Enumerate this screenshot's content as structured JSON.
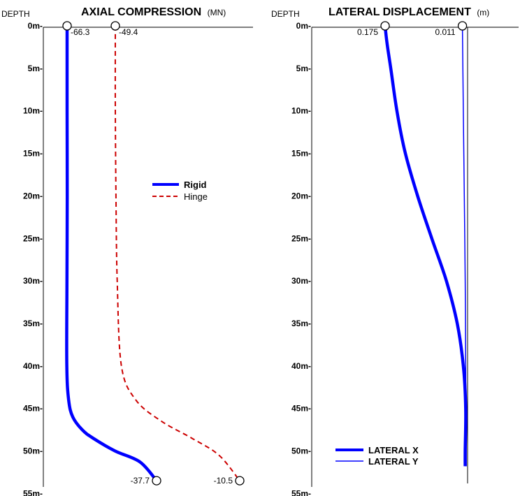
{
  "chart_data": [
    {
      "type": "line",
      "title": "AXIAL COMPRESSION",
      "title_unit": "(MN)",
      "ylabel": "DEPTH",
      "y_unit": "m",
      "y_ticks": [
        0,
        5,
        10,
        15,
        20,
        25,
        30,
        35,
        40,
        45,
        50,
        55
      ],
      "y_tick_labels": [
        "0m-",
        "5m-",
        "10m-",
        "15m-",
        "20m-",
        "25m-",
        "30m-",
        "35m-",
        "40m-",
        "45m-",
        "50m-",
        "55m-"
      ],
      "ylim": [
        0,
        55
      ],
      "y_inverted": true,
      "grid": false,
      "legend_position": "middle-right",
      "series": [
        {
          "name": "Rigid",
          "color": "#0000ff",
          "style": "solid-thick",
          "points": [
            {
              "x": -66.3,
              "depth": 0
            },
            {
              "x": -66.3,
              "depth": 10
            },
            {
              "x": -66.25,
              "depth": 20
            },
            {
              "x": -66.35,
              "depth": 30
            },
            {
              "x": -66.4,
              "depth": 40
            },
            {
              "x": -65.8,
              "depth": 44
            },
            {
              "x": -64.5,
              "depth": 46
            },
            {
              "x": -61.5,
              "depth": 47.5
            },
            {
              "x": -58.0,
              "depth": 48.5
            },
            {
              "x": -51.0,
              "depth": 50
            },
            {
              "x": -43.0,
              "depth": 51.3
            },
            {
              "x": -37.7,
              "depth": 53.5
            }
          ],
          "top_label": "-66.3",
          "bottom_label": "-37.7"
        },
        {
          "name": "Hinge",
          "color": "#cc0000",
          "style": "dashed",
          "points": [
            {
              "x": -49.4,
              "depth": 0
            },
            {
              "x": -49.4,
              "depth": 10
            },
            {
              "x": -49.2,
              "depth": 20
            },
            {
              "x": -48.8,
              "depth": 30
            },
            {
              "x": -47.5,
              "depth": 40
            },
            {
              "x": -43.0,
              "depth": 44
            },
            {
              "x": -35.0,
              "depth": 46.5
            },
            {
              "x": -25.5,
              "depth": 48.5
            },
            {
              "x": -17.0,
              "depth": 50.5
            },
            {
              "x": -10.5,
              "depth": 53.5
            }
          ],
          "top_label": "-49.4",
          "bottom_label": "-10.5"
        }
      ]
    },
    {
      "type": "line",
      "title": "LATERAL DISPLACEMENT",
      "title_unit": "(m)",
      "ylabel": "DEPTH",
      "y_unit": "m",
      "y_ticks": [
        0,
        5,
        10,
        15,
        20,
        25,
        30,
        35,
        40,
        45,
        50,
        55
      ],
      "y_tick_labels": [
        "0m-",
        "5m-",
        "10m-",
        "15m-",
        "20m-",
        "25m-",
        "30m-",
        "35m-",
        "40m-",
        "45m-",
        "50m-",
        "55m-"
      ],
      "ylim": [
        0,
        55
      ],
      "y_inverted": true,
      "grid": false,
      "legend_position": "bottom-left",
      "series": [
        {
          "name": "LATERAL X",
          "color": "#0000ff",
          "style": "solid-thick",
          "points": [
            {
              "x": 0.175,
              "depth": 0
            },
            {
              "x": 0.171,
              "depth": 2
            },
            {
              "x": 0.163,
              "depth": 5
            },
            {
              "x": 0.15,
              "depth": 10
            },
            {
              "x": 0.132,
              "depth": 15
            },
            {
              "x": 0.106,
              "depth": 20
            },
            {
              "x": 0.076,
              "depth": 25
            },
            {
              "x": 0.045,
              "depth": 30
            },
            {
              "x": 0.022,
              "depth": 35
            },
            {
              "x": 0.009,
              "depth": 40
            },
            {
              "x": 0.004,
              "depth": 45
            },
            {
              "x": 0.005,
              "depth": 50
            },
            {
              "x": 0.005,
              "depth": 51.8
            }
          ],
          "top_label": "0.175"
        },
        {
          "name": "LATERAL Y",
          "color": "#0000ff",
          "style": "solid-thin",
          "points": [
            {
              "x": 0.011,
              "depth": 0
            },
            {
              "x": 0.009,
              "depth": 10
            },
            {
              "x": 0.007,
              "depth": 20
            },
            {
              "x": 0.005,
              "depth": 30
            },
            {
              "x": 0.004,
              "depth": 40
            },
            {
              "x": 0.003,
              "depth": 51.8
            }
          ],
          "top_label": "0.011"
        }
      ]
    }
  ]
}
